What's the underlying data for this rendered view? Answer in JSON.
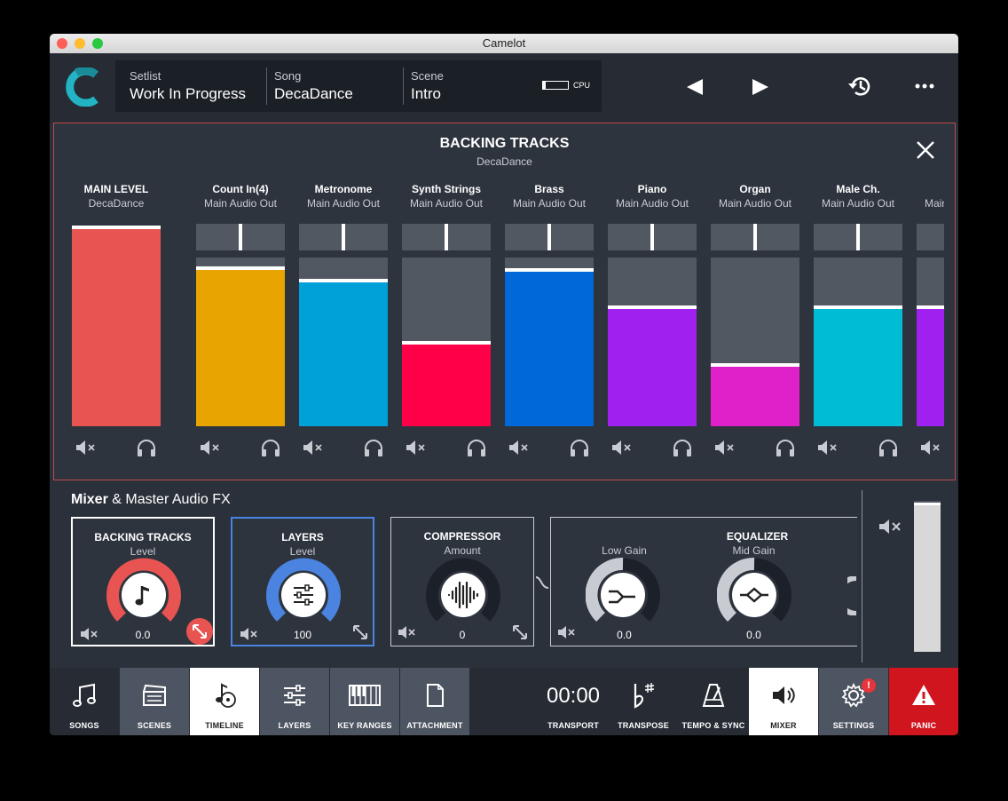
{
  "window": {
    "title": "Camelot"
  },
  "header": {
    "setlist": {
      "label": "Setlist",
      "value": "Work In Progress"
    },
    "song": {
      "label": "Song",
      "value": "DecaDance"
    },
    "scene": {
      "label": "Scene",
      "value": "Intro"
    },
    "cpu": {
      "label": "CPU",
      "level": 0.1
    }
  },
  "panel": {
    "title": "BACKING TRACKS",
    "subtitle": "DecaDance",
    "main": {
      "name": "MAIN LEVEL",
      "sub": "DecaDance",
      "level": 0.99,
      "color": "#e85452"
    },
    "tracks": [
      {
        "name": "Count In(4)",
        "out": "Main Audio Out",
        "level": 0.93,
        "pan": 0.5,
        "color": "#e8a400"
      },
      {
        "name": "Metronome",
        "out": "Main Audio Out",
        "level": 0.86,
        "pan": 0.5,
        "color": "#00a0d8"
      },
      {
        "name": "Synth Strings",
        "out": "Main Audio Out",
        "level": 0.49,
        "pan": 0.5,
        "color": "#ff0048"
      },
      {
        "name": "Brass",
        "out": "Main Audio Out",
        "level": 0.92,
        "pan": 0.5,
        "color": "#0068d8"
      },
      {
        "name": "Piano",
        "out": "Main Audio Out",
        "level": 0.7,
        "pan": 0.5,
        "color": "#a020f0"
      },
      {
        "name": "Organ",
        "out": "Main Audio Out",
        "level": 0.36,
        "pan": 0.5,
        "color": "#e020c8"
      },
      {
        "name": "Male Ch.",
        "out": "Main Audio Out",
        "level": 0.7,
        "pan": 0.5,
        "color": "#00bcd4"
      },
      {
        "name": "",
        "out": "Main Audio Out",
        "level": 0.7,
        "pan": 0.5,
        "color": "#a020f0"
      }
    ]
  },
  "mixer": {
    "title_bold": "Mixer",
    "title_rest": "& Master Audio FX",
    "backing": {
      "title": "BACKING TRACKS",
      "sub": "Level",
      "value": "0.0"
    },
    "layers": {
      "title": "LAYERS",
      "sub": "Level",
      "value": "100"
    },
    "compressor": {
      "title": "COMPRESSOR",
      "sub": "Amount",
      "value": "0"
    },
    "equalizer": {
      "title": "EQUALIZER",
      "low_label": "Low Gain",
      "low_value": "0.0",
      "mid_label": "Mid Gain",
      "mid_value": "0.0"
    },
    "master_level": 0.99
  },
  "toolbar": {
    "songs": "SONGS",
    "scenes": "SCENES",
    "timeline": "TIMELINE",
    "layers": "LAYERS",
    "keyranges": "KEY RANGES",
    "attachment": "ATTACHMENT",
    "transport_time": "00:00",
    "transport": "TRANSPORT",
    "transpose": "TRANSPOSE",
    "tempo": "TEMPO & SYNC",
    "mixer": "MIXER",
    "settings": "SETTINGS",
    "settings_badge": "!",
    "panic": "PANIC"
  },
  "colors": {
    "accent_red": "#e85452",
    "accent_blue": "#4a84e0",
    "panic": "#d0151f"
  }
}
